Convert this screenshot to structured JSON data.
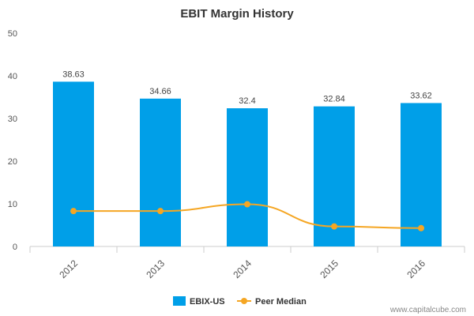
{
  "chart_data": {
    "type": "bar",
    "title": "EBIT Margin History",
    "categories": [
      "2012",
      "2013",
      "2014",
      "2015",
      "2016"
    ],
    "ylim": [
      0,
      50
    ],
    "yticks": [
      "0",
      "10",
      "20",
      "30",
      "40",
      "50"
    ],
    "grid": false,
    "legend_position": "bottom",
    "series": [
      {
        "name": "EBIX-US",
        "type": "bar",
        "color": "#009fe8",
        "values": [
          38.63,
          34.66,
          32.4,
          32.84,
          33.62
        ],
        "labels": [
          "38.63",
          "34.66",
          "32.4",
          "32.84",
          "33.62"
        ]
      },
      {
        "name": "Peer Median",
        "type": "line",
        "color": "#f5a623",
        "values": [
          8.3,
          8.3,
          9.9,
          4.7,
          4.3
        ]
      }
    ]
  },
  "credit": "www.capitalcube.com"
}
